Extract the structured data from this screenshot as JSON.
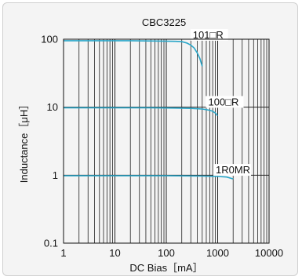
{
  "chart_data": {
    "type": "line",
    "title": "CBC3225",
    "xlabel": "DC Bias［mA］",
    "ylabel": "Inductance［μH］",
    "x_scale": "log",
    "y_scale": "log",
    "xlim": [
      1,
      10000
    ],
    "ylim": [
      0.1,
      100
    ],
    "x_ticks": [
      1,
      10,
      100,
      1000,
      10000
    ],
    "x_tick_labels": [
      "1",
      "10",
      "100",
      "1000",
      "10000"
    ],
    "y_ticks": [
      0.1,
      1,
      10,
      100
    ],
    "y_tick_labels": [
      "0.1",
      "1",
      "10",
      "100"
    ],
    "grid": true,
    "line_color": "#2aa6c8",
    "series": [
      {
        "name": "101□R",
        "x": [
          1,
          20,
          60,
          150,
          200,
          250,
          300,
          350,
          400,
          450,
          500
        ],
        "y": [
          95,
          95,
          94,
          93,
          92,
          88,
          82,
          74,
          63,
          52,
          40
        ]
      },
      {
        "name": "100□R",
        "x": [
          1,
          50,
          150,
          300,
          500,
          600,
          700,
          800,
          900,
          1000
        ],
        "y": [
          9.8,
          9.8,
          9.7,
          9.6,
          9.4,
          9.2,
          9.0,
          8.7,
          8.2,
          7.5
        ]
      },
      {
        "name": "1R0MR",
        "x": [
          1,
          100,
          500,
          1000,
          1500,
          2000
        ],
        "y": [
          0.98,
          0.98,
          0.97,
          0.96,
          0.94,
          0.88
        ]
      }
    ]
  }
}
